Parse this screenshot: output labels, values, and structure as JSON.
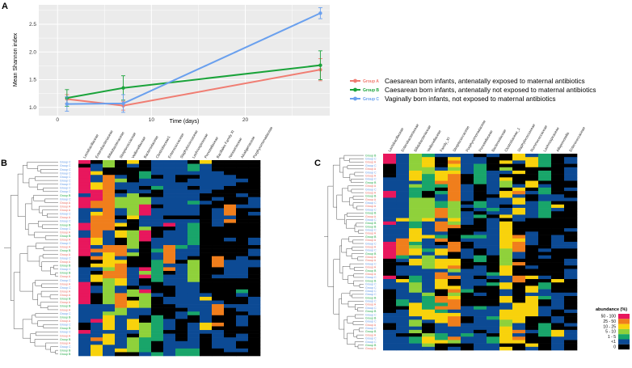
{
  "figure": {
    "panel_a": {
      "letter": "A",
      "chart_data": {
        "type": "line",
        "xlabel": "Time (days)",
        "ylabel": "Mean Shannon index",
        "xlim": [
          -2,
          29
        ],
        "ylim": [
          0.85,
          2.85
        ],
        "xticks": [
          0,
          10,
          20
        ],
        "yticks": [
          1.0,
          1.5,
          2.0,
          2.5
        ],
        "x": [
          1,
          7,
          28
        ],
        "series": [
          {
            "name": "Group A",
            "label": "Caesarean born infants, antenatally exposed to maternal antibiotics",
            "color": "#f07d72",
            "values": [
              1.15,
              1.03,
              1.68
            ],
            "err": [
              0.08,
              0.08,
              0.2
            ]
          },
          {
            "name": "Group B",
            "label": "Caesarean born infants, antenatally not exposed to maternal antibiotics",
            "color": "#1aa33a",
            "values": [
              1.17,
              1.35,
              1.76
            ],
            "err": [
              0.15,
              0.22,
              0.26
            ]
          },
          {
            "name": "Group C",
            "label": "Vaginally born infants, not exposed to maternal antibiotics",
            "color": "#6aa0ee",
            "values": [
              1.06,
              1.07,
              2.7
            ],
            "err": [
              0.13,
              0.16,
              0.1
            ]
          }
        ]
      }
    },
    "panel_b": {
      "letter": "B",
      "columns": [
        "Lactobacillaceae",
        "Enterobacteriaceae",
        "Bifidobacteriaceae",
        "Streptococcaceae",
        "Veillonellaceae",
        "Bacteroidaceae",
        "Clostridiaceae1",
        "Enterococcaceae",
        "Staphylococcaceae",
        "Lachnospiraceae",
        "Prevotellaceae",
        "Bacillales Family XI",
        "Neisseriaceae",
        "Alcaligenaceae",
        "Porphyromonadaceae"
      ],
      "row_groups": [
        "Group C",
        "Group C",
        "Group C",
        "Group C",
        "Group C",
        "Group C",
        "Group C",
        "Group C",
        "Group C",
        "Group B",
        "Group C",
        "Group A",
        "Group A",
        "Group A",
        "Group C",
        "Group A",
        "Group C",
        "Group B",
        "Group C",
        "Group A",
        "Group B",
        "Group A",
        "Group C",
        "Group A",
        "Group B",
        "Group A",
        "Group C",
        "Group A",
        "Group B",
        "Group C",
        "Group B",
        "Group A",
        "Group C",
        "Group A",
        "Group C",
        "Group A",
        "Group A",
        "Group B",
        "Group A",
        "Group B",
        "Group A",
        "Group C",
        "Group B",
        "Group A",
        "Group C",
        "Group B",
        "Group C",
        "Group A",
        "Group B",
        "Group A",
        "Group C",
        "Group B",
        "Group B"
      ]
    },
    "panel_c": {
      "letter": "C",
      "columns": [
        "Lactobacillaceae",
        "Enterobacteriaceae",
        "Bifidobacteriaceae",
        "Veillonellaceae",
        "Family_XI",
        "Streptococcaceae",
        "Porphyromonadaceae",
        "Prevotellaceae",
        "Bacteroidaceae",
        "Clostridiaceae_1",
        "Staphylococcaceae",
        "Ruminococcaceae",
        "Lachnospiraceae",
        "Alloprevotella",
        "Enterococcaceae"
      ],
      "row_groups": [
        "Group B",
        "Group C",
        "Group A",
        "Group C",
        "Group A",
        "Group C",
        "Group A",
        "Group C",
        "Group B",
        "Group A",
        "Group C",
        "Group A",
        "Group B",
        "Group A",
        "Group C",
        "Group A",
        "Group C",
        "Group B",
        "Group A",
        "Group C",
        "Group B",
        "Group B",
        "Group C",
        "Group A",
        "Group B",
        "Group A",
        "Group C",
        "Group A",
        "Group C",
        "Group B",
        "Group A",
        "Group A",
        "Group C",
        "Group A",
        "Group B",
        "Group A",
        "Group C",
        "Group B",
        "Group C",
        "Group C",
        "Group C",
        "Group C",
        "Group B",
        "Group C",
        "Group A",
        "Group C",
        "Group B",
        "Group C",
        "Group B",
        "Group C",
        "Group A",
        "Group C",
        "Group B",
        "Group A",
        "Group C",
        "Group C",
        "Group B",
        "Group A"
      ],
      "legend": {
        "title": "abundance (%)",
        "bins": [
          {
            "label": "50 - 100",
            "color": "#e8175d"
          },
          {
            "label": "25 - 50",
            "color": "#f07e1c"
          },
          {
            "label": "10 - 25",
            "color": "#f8d20c"
          },
          {
            "label": "5 - 10",
            "color": "#8fd13b"
          },
          {
            "label": "1 - 5",
            "color": "#19a56a"
          },
          {
            "label": "<1",
            "color": "#0c4a94"
          },
          {
            "label": "0",
            "color": "#000000"
          }
        ]
      }
    },
    "group_colors": {
      "Group A": "#e96a5e",
      "Group B": "#20a845",
      "Group C": "#5b95e6"
    }
  }
}
